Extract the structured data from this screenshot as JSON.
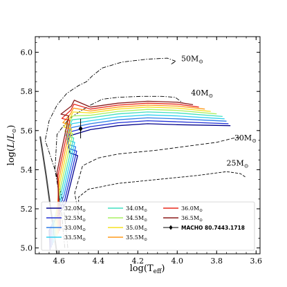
{
  "chart_data": {
    "type": "line",
    "title": "",
    "xlabel_main": "log(T",
    "xlabel_sub": "eff",
    "xlabel_end": ")",
    "ylabel_main": "log(",
    "ylabel_mid": "L",
    "ylabel_slash": "/",
    "ylabel_L": "L",
    "ylabel_sun": "⊙",
    "ylabel_end": ")",
    "xlim": [
      4.72,
      3.58
    ],
    "ylim": [
      4.97,
      6.08
    ],
    "xticks": [
      {
        "v": 4.6,
        "label": "4.6"
      },
      {
        "v": 4.4,
        "label": "4.4"
      },
      {
        "v": 4.2,
        "label": "4.2"
      },
      {
        "v": 4.0,
        "label": "4.0"
      },
      {
        "v": 3.8,
        "label": "3.8"
      },
      {
        "v": 3.6,
        "label": "3.6"
      }
    ],
    "yticks": [
      {
        "v": 5.0,
        "label": "5.0"
      },
      {
        "v": 5.2,
        "label": "5.2"
      },
      {
        "v": 5.4,
        "label": "5.4"
      },
      {
        "v": 5.6,
        "label": "5.6"
      },
      {
        "v": 5.8,
        "label": "5.8"
      },
      {
        "v": 6.0,
        "label": "6.0"
      }
    ],
    "reference_tracks": [
      {
        "mass_label": "50M",
        "sun": "⊙",
        "label_x": 3.98,
        "label_y": 5.955,
        "dash": "6,2,1.5,2",
        "points": [
          [
            4.555,
            5.0
          ],
          [
            4.56,
            5.06
          ],
          [
            4.58,
            5.24
          ],
          [
            4.62,
            5.4
          ],
          [
            4.67,
            5.55
          ],
          [
            4.65,
            5.65
          ],
          [
            4.61,
            5.73
          ],
          [
            4.56,
            5.79
          ],
          [
            4.5,
            5.83
          ],
          [
            4.46,
            5.85
          ],
          [
            4.43,
            5.88
          ],
          [
            4.38,
            5.92
          ],
          [
            4.28,
            5.95
          ],
          [
            4.15,
            5.965
          ],
          [
            4.05,
            5.97
          ],
          [
            4.01,
            5.955
          ],
          [
            4.03,
            5.94
          ],
          [
            4.01,
            5.952
          ]
        ]
      },
      {
        "mass_label": "40M",
        "sun": "⊙",
        "label_x": 3.93,
        "label_y": 5.78,
        "dash": "6,2,1.5,2",
        "points": [
          [
            4.57,
            5.0
          ],
          [
            4.575,
            5.05
          ],
          [
            4.59,
            5.22
          ],
          [
            4.62,
            5.4
          ],
          [
            4.61,
            5.58
          ],
          [
            4.55,
            5.66
          ],
          [
            4.49,
            5.7
          ],
          [
            4.44,
            5.73
          ],
          [
            4.38,
            5.76
          ],
          [
            4.3,
            5.77
          ],
          [
            4.18,
            5.775
          ],
          [
            4.08,
            5.775
          ],
          [
            4.01,
            5.77
          ],
          [
            3.97,
            5.74
          ]
        ]
      },
      {
        "mass_label": "30M",
        "sun": "⊙",
        "label_x": 3.71,
        "label_y": 5.55,
        "dash": "5,2.5",
        "points": [
          [
            4.5,
            5.17
          ],
          [
            4.52,
            5.28
          ],
          [
            4.48,
            5.42
          ],
          [
            4.4,
            5.46
          ],
          [
            4.3,
            5.48
          ],
          [
            4.1,
            5.5
          ],
          [
            3.95,
            5.52
          ],
          [
            3.8,
            5.54
          ],
          [
            3.72,
            5.56
          ],
          [
            3.68,
            5.565
          ]
        ]
      },
      {
        "mass_label": "25M",
        "sun": "⊙",
        "label_x": 3.75,
        "label_y": 5.42,
        "dash": "4,2",
        "points": [
          [
            4.5,
            5.19
          ],
          [
            4.5,
            5.26
          ],
          [
            4.45,
            5.3
          ],
          [
            4.3,
            5.33
          ],
          [
            4.1,
            5.35
          ],
          [
            3.9,
            5.37
          ],
          [
            3.75,
            5.39
          ],
          [
            3.68,
            5.38
          ],
          [
            3.65,
            5.36
          ]
        ]
      }
    ],
    "zams_line": [
      [
        4.695,
        5.57
      ],
      [
        4.665,
        5.37
      ],
      [
        4.635,
        5.15
      ],
      [
        4.61,
        4.97
      ]
    ],
    "series": [
      {
        "name": "32.0",
        "color": "#00008b",
        "ms_top": [
          4.505,
          5.472
        ],
        "hook": [
          4.545,
          5.486
        ],
        "ext_lum": 5.625,
        "end": [
          3.73,
          5.625
        ],
        "flip": 5.495
      },
      {
        "name": "32.5",
        "color": "#1f2fd6",
        "ms_top": [
          4.51,
          5.495
        ],
        "hook": [
          4.55,
          5.508
        ],
        "ext_lum": 5.64,
        "end": [
          3.74,
          5.635
        ],
        "flip": 5.515
      },
      {
        "name": "33.0",
        "color": "#2f7fe8",
        "ms_top": [
          4.515,
          5.517
        ],
        "hook": [
          4.555,
          5.53
        ],
        "ext_lum": 5.655,
        "end": [
          3.75,
          5.648
        ],
        "flip": 5.535
      },
      {
        "name": "33.5",
        "color": "#30d0f0",
        "ms_top": [
          4.52,
          5.54
        ],
        "hook": [
          4.56,
          5.552
        ],
        "ext_lum": 5.67,
        "end": [
          3.76,
          5.66
        ],
        "flip": 5.555
      },
      {
        "name": "34.0",
        "color": "#40e0c0",
        "ms_top": [
          4.525,
          5.562
        ],
        "hook": [
          4.565,
          5.574
        ],
        "ext_lum": 5.685,
        "end": [
          3.77,
          5.672
        ],
        "flip": 5.575
      },
      {
        "name": "34.5",
        "color": "#a8f060",
        "ms_top": [
          4.53,
          5.585
        ],
        "hook": [
          4.57,
          5.596
        ],
        "ext_lum": 5.698,
        "end": [
          3.8,
          5.685
        ],
        "flip": 5.595
      },
      {
        "name": "35.0",
        "color": "#f5e020",
        "ms_top": [
          4.535,
          5.607
        ],
        "hook": [
          4.575,
          5.618
        ],
        "ext_lum": 5.71,
        "end": [
          3.83,
          5.698
        ],
        "flip": 5.615
      },
      {
        "name": "35.5",
        "color": "#ff9a1a",
        "ms_top": [
          4.54,
          5.63
        ],
        "hook": [
          4.58,
          5.64
        ],
        "ext_lum": 5.72,
        "end": [
          3.86,
          5.71
        ],
        "flip": 5.635
      },
      {
        "name": "36.0",
        "color": "#e8281c",
        "ms_top": [
          4.545,
          5.652
        ],
        "hook": [
          4.585,
          5.662
        ],
        "ext_lum": 5.73,
        "end": [
          3.89,
          5.72
        ],
        "flip": 5.655
      },
      {
        "name": "36.5",
        "color": "#8b1a1a",
        "ms_top": [
          4.55,
          5.675
        ],
        "hook": [
          4.59,
          5.684
        ],
        "ext_lum": 5.74,
        "end": [
          3.92,
          5.732
        ],
        "flip": 5.675
      }
    ],
    "zams_start": {
      "x_base": 4.645,
      "x_step": 0.006,
      "y_base": 4.99,
      "y_step": 0.012
    },
    "observed_star": {
      "name": "MACHO 80.7443.1718",
      "teff": 4.49,
      "lum": 5.61,
      "err_teff": 0.0,
      "err_lum": 0.05
    },
    "legend": {
      "mass_unit": "M",
      "sun": "⊙",
      "star_label": "MACHO 80.7443.1718"
    }
  }
}
